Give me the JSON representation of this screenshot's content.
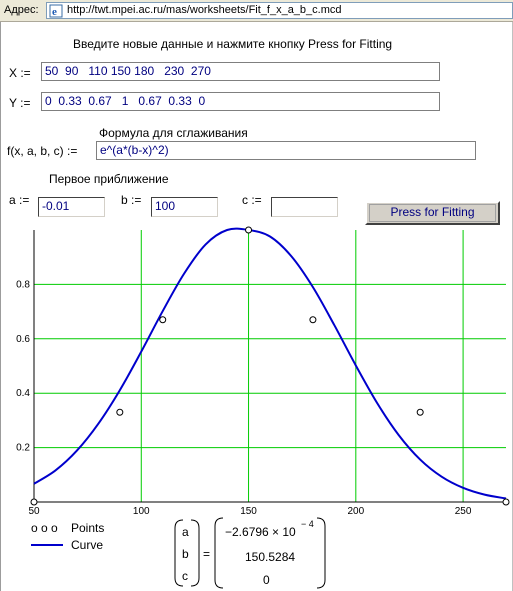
{
  "addressbar": {
    "label": "Адрес:",
    "url": "http://twt.mpei.ac.ru/mas/worksheets/Fit_f_x_a_b_c.mcd"
  },
  "worksheet": {
    "instruction": "Введите новые данные и нажмите кнопку Press for Fitting",
    "x_label": "X :=",
    "x_value": "50  90   110 150 180   230  270",
    "y_label": "Y :=",
    "y_value": "0  0.33  0.67   1   0.67  0.33  0",
    "formula_caption": "Формула для сглаживания",
    "f_label": "f(x, a, b, c) :=",
    "f_value": "e^(a*(b-x)^2)",
    "approx_caption": "Первое приближение",
    "a_label": "a :=",
    "a_value": "-0.01",
    "b_label": "b :=",
    "b_value": "100",
    "c_label": "c :=",
    "c_value": "",
    "button_label": "Press for Fitting"
  },
  "legend": {
    "points_symbol": "o o o",
    "points_label": "Points",
    "curve_label": "Curve"
  },
  "result": {
    "vec_a": "a",
    "vec_b": "b",
    "vec_c": "c",
    "equals": "=",
    "val_a_mantissa": "−2.6796 × 10",
    "val_a_exponent": "− 4",
    "val_b": "150.5284",
    "val_c": "0"
  },
  "colors": {
    "grid": "#00cc00",
    "curve": "#0000cc",
    "field_text": "#000080"
  },
  "chart_data": {
    "type": "scatter",
    "x_ticks": [
      50,
      100,
      150,
      200,
      250
    ],
    "y_ticks": [
      0.2,
      0.4,
      0.6,
      0.8
    ],
    "xlim": [
      50,
      270
    ],
    "ylim": [
      0,
      1
    ],
    "grid": true,
    "series": [
      {
        "name": "Points",
        "kind": "points",
        "x": [
          50,
          90,
          110,
          150,
          180,
          230,
          270
        ],
        "y": [
          0,
          0.33,
          0.67,
          1,
          0.67,
          0.33,
          0
        ]
      },
      {
        "name": "Curve",
        "kind": "line",
        "x": [
          50,
          60,
          70,
          80,
          90,
          100,
          110,
          120,
          130,
          140,
          150,
          160,
          170,
          180,
          190,
          200,
          210,
          220,
          230,
          240,
          250,
          260,
          270
        ],
        "y": [
          0.067,
          0.116,
          0.189,
          0.288,
          0.411,
          0.553,
          0.702,
          0.84,
          0.947,
          1.0,
          1.0,
          0.976,
          0.903,
          0.79,
          0.65,
          0.502,
          0.363,
          0.246,
          0.156,
          0.093,
          0.052,
          0.027,
          0.013
        ]
      }
    ]
  }
}
